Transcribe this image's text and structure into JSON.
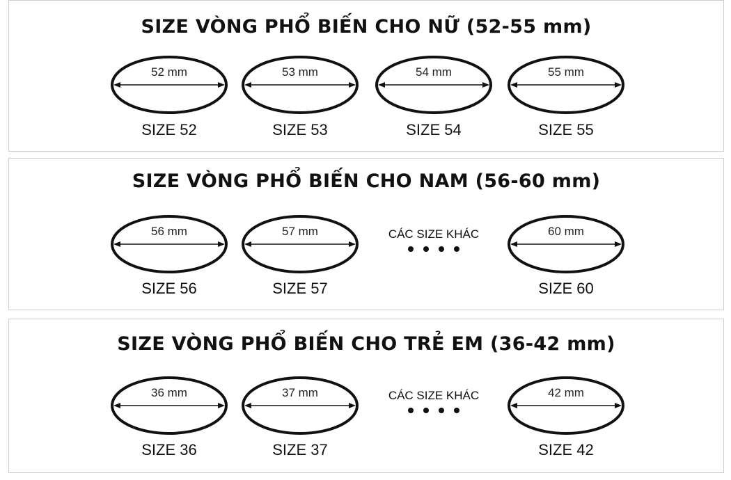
{
  "panels": [
    {
      "title": "SIZE VÒNG PHỔ BIẾN CHO NỮ (52-55 mm)",
      "items": [
        {
          "type": "ring",
          "mm": "52 mm",
          "size": "SIZE 52"
        },
        {
          "type": "ring",
          "mm": "53 mm",
          "size": "SIZE 53"
        },
        {
          "type": "ring",
          "mm": "54 mm",
          "size": "SIZE 54"
        },
        {
          "type": "ring",
          "mm": "55 mm",
          "size": "SIZE 55"
        }
      ]
    },
    {
      "title": "SIZE VÒNG PHỔ BIẾN CHO NAM (56-60 mm)",
      "items": [
        {
          "type": "ring",
          "mm": "56 mm",
          "size": "SIZE 56"
        },
        {
          "type": "ring",
          "mm": "57 mm",
          "size": "SIZE 57"
        },
        {
          "type": "other",
          "text": "CÁC SIZE KHÁC"
        },
        {
          "type": "ring",
          "mm": "60 mm",
          "size": "SIZE 60"
        }
      ]
    },
    {
      "title": "SIZE VÒNG PHỔ BIẾN CHO TRẺ EM (36-42 mm)",
      "items": [
        {
          "type": "ring",
          "mm": "36 mm",
          "size": "SIZE 36"
        },
        {
          "type": "ring",
          "mm": "37 mm",
          "size": "SIZE 37"
        },
        {
          "type": "other",
          "text": "CÁC SIZE KHÁC"
        },
        {
          "type": "ring",
          "mm": "42 mm",
          "size": "SIZE 42"
        }
      ]
    }
  ]
}
